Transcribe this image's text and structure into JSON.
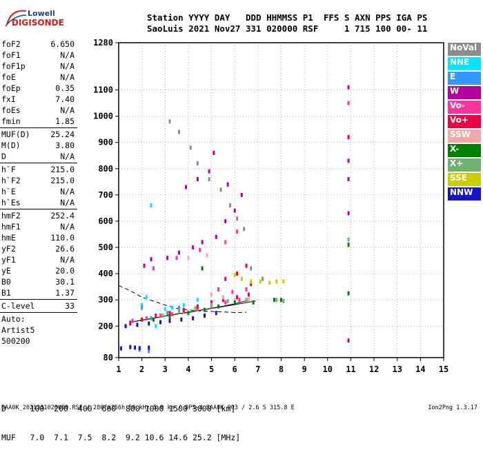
{
  "logo": {
    "lowell": "Lowell",
    "digisonde": "DIGISONDE"
  },
  "header": {
    "line1": "Station YYYY DAY   DDD HHMMSS P1  FFS S AXN PPS IGA PS",
    "line2": "SaoLuis 2021 Nov27 331 020000 RSF     1 715 100 00- 11"
  },
  "params": [
    {
      "label": "foF2",
      "value": "6.650"
    },
    {
      "label": "foF1",
      "value": "N/A"
    },
    {
      "label": "foF1p",
      "value": "N/A"
    },
    {
      "label": "foE",
      "value": "N/A"
    },
    {
      "label": "foEp",
      "value": "0.35"
    },
    {
      "label": "fxI",
      "value": "7.40"
    },
    {
      "label": "foEs",
      "value": "N/A"
    },
    {
      "label": "fmin",
      "value": "1.85"
    },
    {
      "label": "MUF(D)",
      "value": "25.24"
    },
    {
      "label": "M(D)",
      "value": "3.80"
    },
    {
      "label": "D",
      "value": "N/A"
    },
    {
      "label": "h`F",
      "value": "215.0"
    },
    {
      "label": "h`F2",
      "value": "215.0"
    },
    {
      "label": "h`E",
      "value": "N/A"
    },
    {
      "label": "h`Es",
      "value": "N/A"
    },
    {
      "label": "hmF2",
      "value": "252.4"
    },
    {
      "label": "hmF1",
      "value": "N/A"
    },
    {
      "label": "hmE",
      "value": "110.0"
    },
    {
      "label": "yF2",
      "value": "26.6"
    },
    {
      "label": "yF1",
      "value": "N/A"
    },
    {
      "label": "yE",
      "value": "20.0"
    },
    {
      "label": "B0",
      "value": "30.1"
    },
    {
      "label": "B1",
      "value": "1.37"
    },
    {
      "label": "C-level",
      "value": "33"
    }
  ],
  "autoscaling": {
    "line1": "Auto:",
    "line2": "Artist5",
    "line3": "500200"
  },
  "legend": [
    {
      "label": "NoVal",
      "color": "#8c8c8c"
    },
    {
      "label": "NNE",
      "color": "#00e6ff"
    },
    {
      "label": "E",
      "color": "#3399ff"
    },
    {
      "label": "W",
      "color": "#b3009e"
    },
    {
      "label": "Vo-",
      "color": "#ff3399"
    },
    {
      "label": "Vo+",
      "color": "#ee0044"
    },
    {
      "label": "SSW",
      "color": "#f2a8a8"
    },
    {
      "label": "X-",
      "color": "#008000"
    },
    {
      "label": "X+",
      "color": "#70b070"
    },
    {
      "label": "SSE",
      "color": "#cccc00"
    },
    {
      "label": "NNW",
      "color": "#1414c8"
    }
  ],
  "dmuf": {
    "d_line": "D     100  200  400  600  800 1000 1500 3000 [km]",
    "muf_line": "MUF   7.0  7.1  7.5  8.2  9.2 10.6 14.6 25.2 [MHz]"
  },
  "footer": "SAA0K_2021331020000.RSF / 280fx256h 50 kHz 5.0 km / DPS-4 SAA0K 903 / 2.6 S 315.8 E",
  "version": "Ion2Png 1.3.17",
  "chart_data": {
    "type": "scatter",
    "title": "",
    "xlabel": "",
    "ylabel": "",
    "xlim": [
      1,
      15
    ],
    "ylim": [
      80,
      1280
    ],
    "x_ticks": [
      1,
      2,
      3,
      4,
      5,
      6,
      7,
      8,
      9,
      10,
      11,
      12,
      13,
      14,
      15
    ],
    "y_ticks": [
      80,
      200,
      300,
      400,
      500,
      600,
      700,
      800,
      900,
      1000,
      1100,
      1280
    ],
    "grid": true,
    "legend_position": "right",
    "series": [
      {
        "name": "NoVal",
        "points": [
          [
            3.2,
            980
          ],
          [
            3.6,
            940
          ],
          [
            4.1,
            880
          ],
          [
            4.4,
            820
          ],
          [
            4.9,
            760
          ],
          [
            5.4,
            720
          ],
          [
            5.8,
            660
          ],
          [
            6.1,
            610
          ],
          [
            6.4,
            570
          ],
          [
            6.7,
            420
          ],
          [
            7.2,
            380
          ]
        ]
      },
      {
        "name": "NNE",
        "points": [
          [
            2.0,
            280
          ],
          [
            2.2,
            310
          ],
          [
            2.6,
            200
          ],
          [
            3.0,
            265
          ],
          [
            3.3,
            270
          ],
          [
            2.4,
            660
          ],
          [
            3.8,
            280
          ],
          [
            4.4,
            300
          ]
        ]
      },
      {
        "name": "E",
        "points": [
          [
            1.5,
            215
          ],
          [
            2.0,
            270
          ],
          [
            2.4,
            230
          ],
          [
            3.1,
            250
          ],
          [
            1.9,
            110
          ],
          [
            2.3,
            105
          ],
          [
            3.6,
            270
          ]
        ]
      },
      {
        "name": "W",
        "points": [
          [
            2.1,
            430
          ],
          [
            2.4,
            455
          ],
          [
            3.1,
            460
          ],
          [
            3.6,
            480
          ],
          [
            4.2,
            500
          ],
          [
            4.6,
            520
          ],
          [
            5.2,
            540
          ],
          [
            5.6,
            600
          ],
          [
            6.0,
            640
          ],
          [
            3.9,
            730
          ],
          [
            4.4,
            760
          ],
          [
            4.9,
            790
          ],
          [
            5.7,
            740
          ],
          [
            6.3,
            700
          ],
          [
            5.1,
            860
          ],
          [
            10.9,
            1110
          ],
          [
            10.9,
            920
          ],
          [
            10.9,
            830
          ],
          [
            10.9,
            760
          ],
          [
            10.9,
            630
          ],
          [
            10.9,
            145
          ]
        ]
      },
      {
        "name": "Vo-",
        "points": [
          [
            1.6,
            220
          ],
          [
            2.2,
            230
          ],
          [
            2.8,
            240
          ],
          [
            3.3,
            245
          ],
          [
            3.8,
            255
          ],
          [
            4.4,
            265
          ],
          [
            5.0,
            275
          ],
          [
            5.6,
            290
          ],
          [
            6.2,
            300
          ],
          [
            5.3,
            340
          ],
          [
            5.9,
            330
          ],
          [
            6.5,
            340
          ],
          [
            2.5,
            420
          ],
          [
            3.5,
            460
          ],
          [
            4.5,
            490
          ],
          [
            5.6,
            520
          ],
          [
            6.1,
            560
          ],
          [
            10.9,
            1050
          ]
        ]
      },
      {
        "name": "Vo+",
        "points": [
          [
            1.5,
            210
          ],
          [
            2.0,
            225
          ],
          [
            2.6,
            240
          ],
          [
            3.2,
            250
          ],
          [
            3.8,
            262
          ],
          [
            4.4,
            275
          ],
          [
            5.0,
            290
          ],
          [
            5.5,
            300
          ],
          [
            6.1,
            310
          ],
          [
            6.6,
            320
          ],
          [
            5.6,
            380
          ],
          [
            6.1,
            400
          ],
          [
            6.5,
            430
          ],
          [
            6.7,
            360
          ],
          [
            10.9,
            920
          ]
        ]
      },
      {
        "name": "SSW",
        "points": [
          [
            5.0,
            320
          ],
          [
            5.5,
            310
          ],
          [
            6.0,
            300
          ],
          [
            6.6,
            300
          ],
          [
            4.0,
            460
          ],
          [
            4.8,
            470
          ]
        ]
      },
      {
        "name": "X-",
        "points": [
          [
            2.5,
            225
          ],
          [
            3.2,
            235
          ],
          [
            4.0,
            250
          ],
          [
            4.7,
            262
          ],
          [
            5.3,
            275
          ],
          [
            6.0,
            290
          ],
          [
            6.8,
            290
          ],
          [
            7.7,
            300
          ],
          [
            8.0,
            300
          ],
          [
            10.9,
            510
          ],
          [
            10.9,
            325
          ],
          [
            4.6,
            420
          ]
        ]
      },
      {
        "name": "X+",
        "points": [
          [
            2.9,
            240
          ],
          [
            3.6,
            255
          ],
          [
            4.3,
            268
          ],
          [
            5.0,
            280
          ],
          [
            5.7,
            295
          ],
          [
            6.5,
            300
          ],
          [
            7.8,
            300
          ],
          [
            8.1,
            295
          ],
          [
            10.9,
            530
          ]
        ]
      },
      {
        "name": "SSE",
        "points": [
          [
            6.3,
            380
          ],
          [
            6.7,
            370
          ],
          [
            7.1,
            370
          ],
          [
            7.5,
            365
          ],
          [
            7.8,
            370
          ],
          [
            8.1,
            370
          ],
          [
            6.0,
            395
          ]
        ]
      },
      {
        "name": "NNW",
        "points": [
          [
            1.3,
            200
          ],
          [
            1.8,
            205
          ],
          [
            2.3,
            210
          ],
          [
            2.8,
            215
          ],
          [
            3.2,
            220
          ],
          [
            3.7,
            225
          ],
          [
            4.2,
            230
          ],
          [
            4.7,
            240
          ],
          [
            5.2,
            250
          ],
          [
            1.5,
            120
          ],
          [
            1.7,
            118
          ],
          [
            1.9,
            116
          ],
          [
            2.3,
            118
          ],
          [
            1.1,
            115
          ]
        ]
      }
    ],
    "profile_curves": [
      {
        "style": "dashed",
        "points": [
          [
            1.0,
            355
          ],
          [
            1.5,
            335
          ],
          [
            2.0,
            310
          ],
          [
            2.5,
            295
          ],
          [
            3.0,
            280
          ],
          [
            3.5,
            268
          ],
          [
            4.0,
            262
          ],
          [
            4.5,
            258
          ],
          [
            5.0,
            256
          ],
          [
            5.5,
            254
          ],
          [
            6.0,
            252
          ],
          [
            6.5,
            252.4
          ]
        ]
      },
      {
        "style": "solid",
        "points": [
          [
            1.5,
            215
          ],
          [
            2.0,
            222
          ],
          [
            2.5,
            230
          ],
          [
            3.0,
            238
          ],
          [
            3.5,
            246
          ],
          [
            4.0,
            253
          ],
          [
            4.5,
            260
          ],
          [
            5.0,
            268
          ],
          [
            5.5,
            276
          ],
          [
            6.0,
            285
          ],
          [
            6.65,
            300
          ]
        ]
      },
      {
        "style": "solid",
        "points": [
          [
            1.7,
            218
          ],
          [
            2.2,
            226
          ],
          [
            2.8,
            235
          ],
          [
            3.4,
            244
          ],
          [
            4.0,
            252
          ],
          [
            4.6,
            262
          ],
          [
            5.2,
            270
          ],
          [
            5.8,
            279
          ],
          [
            6.4,
            288
          ],
          [
            6.9,
            296
          ]
        ]
      }
    ]
  }
}
